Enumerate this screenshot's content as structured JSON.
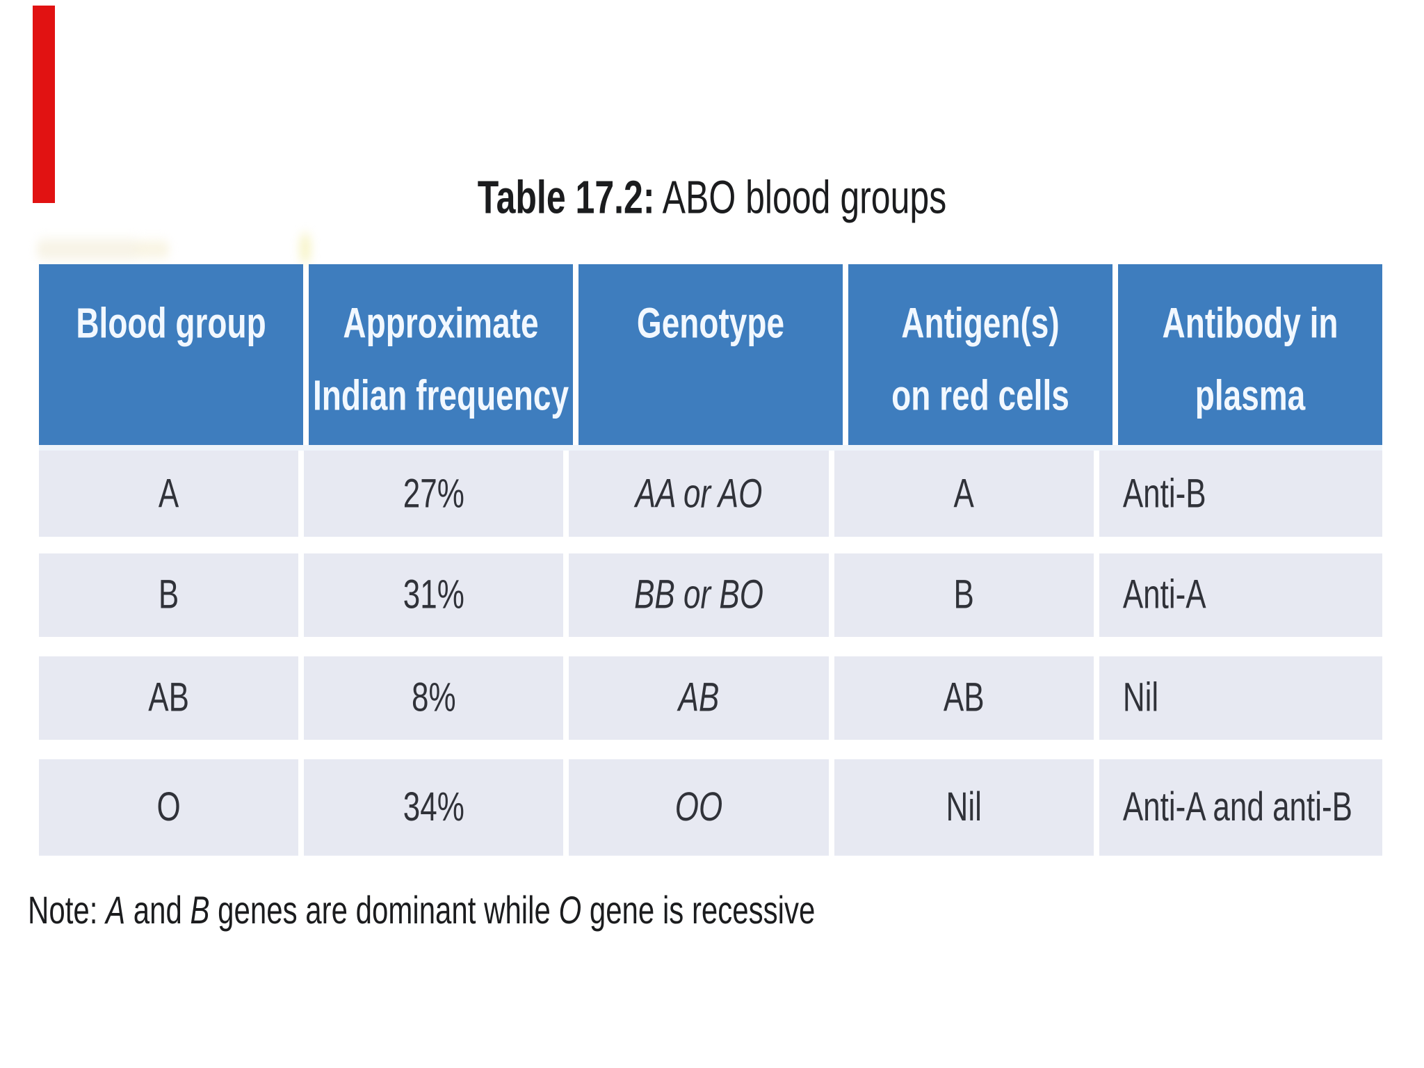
{
  "title": {
    "bold": "Table 17.2:",
    "rest": " ABO blood groups"
  },
  "table": {
    "headers": [
      {
        "line1": "Blood group",
        "line2": ""
      },
      {
        "line1": "Approximate",
        "line2": "Indian frequency"
      },
      {
        "line1": "Genotype",
        "line2": ""
      },
      {
        "line1": "Antigen(s)",
        "line2": "on red cells"
      },
      {
        "line1": "Antibody in",
        "line2": "plasma"
      }
    ],
    "rows": [
      {
        "blood_group": "A",
        "frequency": "27%",
        "genotype": "AA or AO",
        "antigens": "A",
        "antibody": "Anti-B"
      },
      {
        "blood_group": "B",
        "frequency": "31%",
        "genotype": "BB or BO",
        "antigens": "B",
        "antibody": "Anti-A"
      },
      {
        "blood_group": "AB",
        "frequency": "8%",
        "genotype": "AB",
        "antigens": "AB",
        "antibody": "Nil"
      },
      {
        "blood_group": "O",
        "frequency": "34%",
        "genotype": "OO",
        "antigens": "Nil",
        "antibody": "Anti-A and anti-B"
      }
    ]
  },
  "note": {
    "prefix": "Note: ",
    "gene_a": "A",
    "mid1": " and ",
    "gene_b": "B",
    "mid2": " genes are dominant while ",
    "gene_o": "O",
    "suffix": " gene is recessive"
  },
  "colors": {
    "header_background": "#3e7dbe",
    "header_text": "#f2f8ff",
    "row_background": "#e7e9f2",
    "body_text": "#303239",
    "red_margin_bar": "#e11212",
    "page_background": "#ffffff"
  }
}
